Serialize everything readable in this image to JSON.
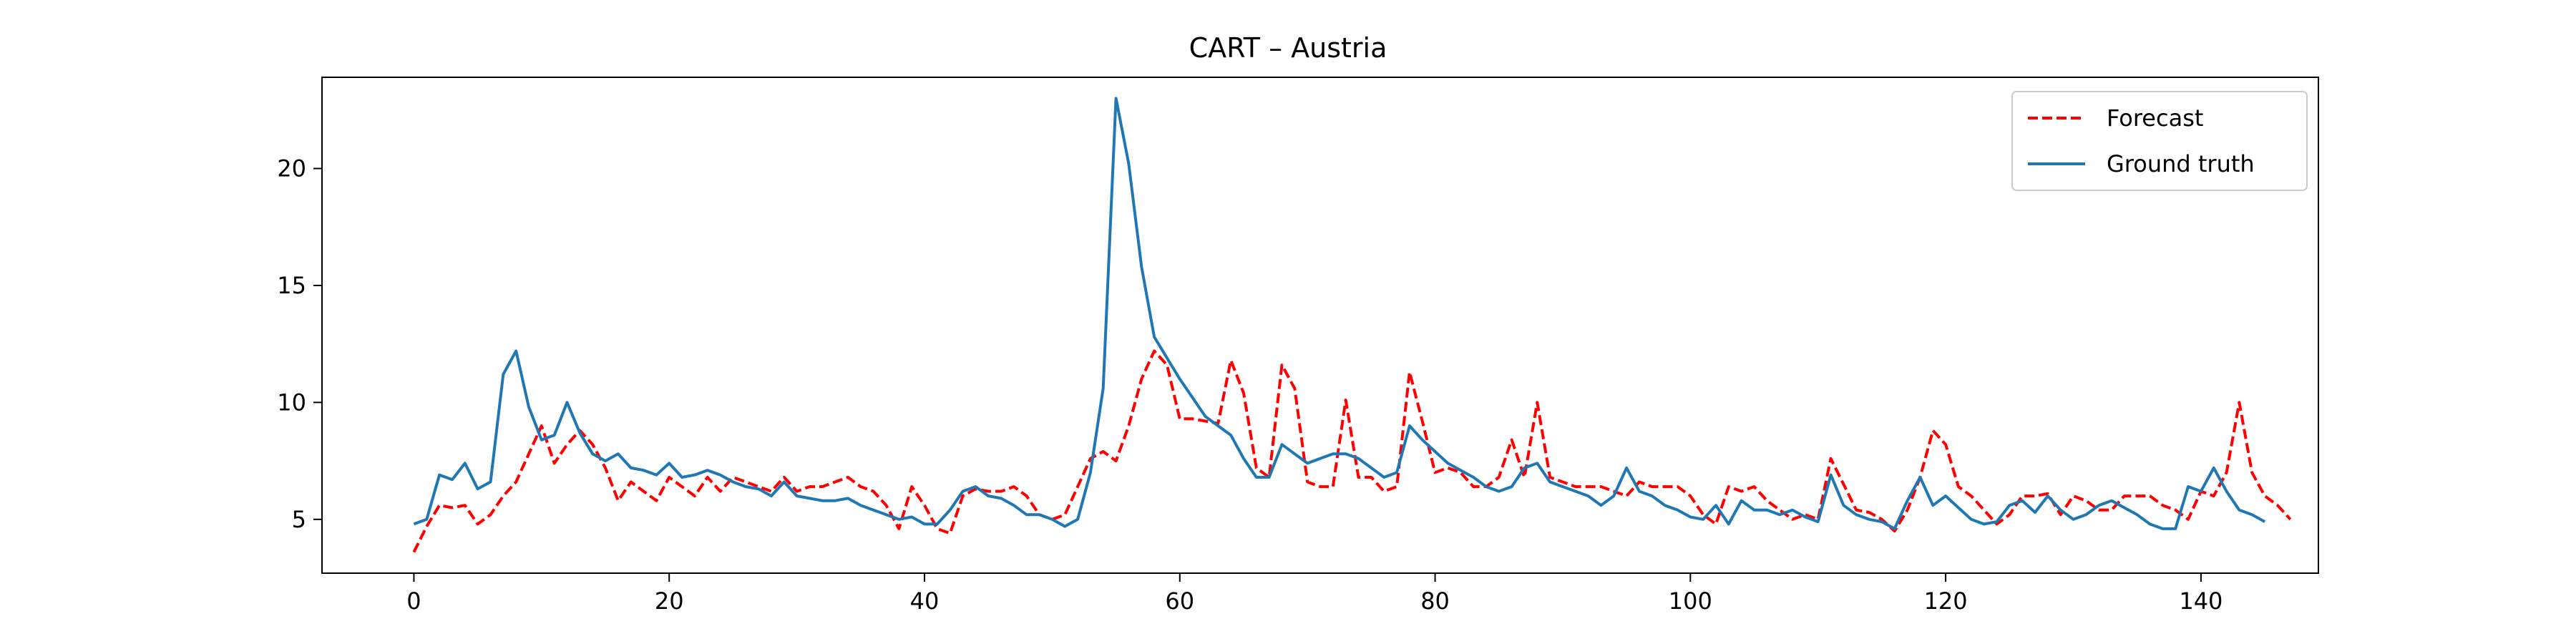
{
  "chart_data": {
    "type": "line",
    "title": "CART – Austria",
    "xlabel": "",
    "ylabel": "",
    "xlim": [
      -7.2,
      149.2
    ],
    "ylim": [
      2.7,
      23.9
    ],
    "xticks": [
      0,
      20,
      40,
      60,
      80,
      100,
      120,
      140
    ],
    "yticks": [
      5,
      10,
      15,
      20
    ],
    "grid": false,
    "legend": "top-right",
    "series": [
      {
        "name": "Forecast",
        "color": "#ff0000",
        "style": "dashed",
        "values": [
          3.6,
          4.7,
          5.6,
          5.5,
          5.6,
          4.8,
          5.2,
          6.0,
          6.6,
          7.8,
          9.0,
          7.4,
          8.2,
          8.8,
          8.2,
          7.2,
          5.8,
          6.6,
          6.2,
          5.8,
          6.8,
          6.4,
          6.0,
          6.8,
          6.2,
          6.8,
          6.6,
          6.4,
          6.2,
          6.8,
          6.2,
          6.4,
          6.4,
          6.6,
          6.8,
          6.4,
          6.2,
          5.6,
          4.6,
          6.4,
          5.6,
          4.6,
          4.4,
          6.0,
          6.3,
          6.2,
          6.2,
          6.4,
          6.0,
          5.2,
          5.0,
          5.2,
          6.4,
          7.6,
          7.9,
          7.5,
          9.0,
          11.0,
          12.2,
          11.6,
          9.3,
          9.3,
          9.2,
          9.1,
          11.8,
          10.4,
          7.2,
          6.8,
          11.6,
          10.6,
          6.6,
          6.4,
          6.4,
          10.1,
          6.8,
          6.8,
          6.2,
          6.4,
          11.3,
          9.2,
          7.0,
          7.2,
          7.0,
          6.4,
          6.4,
          6.8,
          8.4,
          6.8,
          10.0,
          6.8,
          6.6,
          6.4,
          6.4,
          6.4,
          6.2,
          6.0,
          6.6,
          6.4,
          6.4,
          6.4,
          6.0,
          5.2,
          4.8,
          6.4,
          6.2,
          6.4,
          5.8,
          5.4,
          5.0,
          5.2,
          5.0,
          7.6,
          6.5,
          5.4,
          5.3,
          5.0,
          4.5,
          5.4,
          6.8,
          8.8,
          8.2,
          6.4,
          6.0,
          5.4,
          4.8,
          5.2,
          6.0,
          6.0,
          6.1,
          5.2,
          6.0,
          5.8,
          5.4,
          5.4,
          6.0,
          6.0,
          6.0,
          5.6,
          5.4,
          5.0,
          6.2,
          6.0,
          7.0,
          10.0,
          7.0,
          6.0,
          5.6,
          5.0
        ]
      },
      {
        "name": "Ground truth",
        "color": "#1f77b4",
        "style": "solid",
        "values": [
          4.8,
          5.0,
          6.9,
          6.7,
          7.4,
          6.3,
          6.6,
          11.2,
          12.2,
          9.8,
          8.4,
          8.6,
          10.0,
          8.7,
          7.8,
          7.5,
          7.8,
          7.2,
          7.1,
          6.9,
          7.4,
          6.8,
          6.9,
          7.1,
          6.9,
          6.6,
          6.4,
          6.3,
          6.0,
          6.6,
          6.0,
          5.9,
          5.8,
          5.8,
          5.9,
          5.6,
          5.4,
          5.2,
          5.0,
          5.1,
          4.8,
          4.8,
          5.4,
          6.2,
          6.4,
          6.0,
          5.9,
          5.6,
          5.2,
          5.2,
          5.0,
          4.7,
          5.0,
          7.0,
          10.6,
          23.0,
          20.2,
          15.8,
          12.8,
          11.9,
          11.0,
          10.2,
          9.4,
          9.0,
          8.6,
          7.6,
          6.8,
          6.8,
          8.2,
          7.8,
          7.4,
          7.6,
          7.8,
          7.8,
          7.6,
          7.2,
          6.8,
          7.0,
          9.0,
          8.4,
          7.9,
          7.4,
          7.1,
          6.8,
          6.4,
          6.2,
          6.4,
          7.2,
          7.4,
          6.6,
          6.4,
          6.2,
          6.0,
          5.6,
          6.0,
          7.2,
          6.2,
          6.0,
          5.6,
          5.4,
          5.1,
          5.0,
          5.6,
          4.8,
          5.8,
          5.4,
          5.4,
          5.2,
          5.4,
          5.1,
          4.9,
          6.9,
          5.6,
          5.2,
          5.0,
          4.9,
          4.6,
          5.8,
          6.8,
          5.6,
          6.0,
          5.5,
          5.0,
          4.8,
          4.9,
          5.6,
          5.8,
          5.3,
          6.0,
          5.4,
          5.0,
          5.2,
          5.6,
          5.8,
          5.5,
          5.2,
          4.8,
          4.6,
          4.6,
          6.4,
          6.2,
          7.2,
          6.2,
          5.4,
          5.2,
          4.9
        ]
      }
    ]
  }
}
